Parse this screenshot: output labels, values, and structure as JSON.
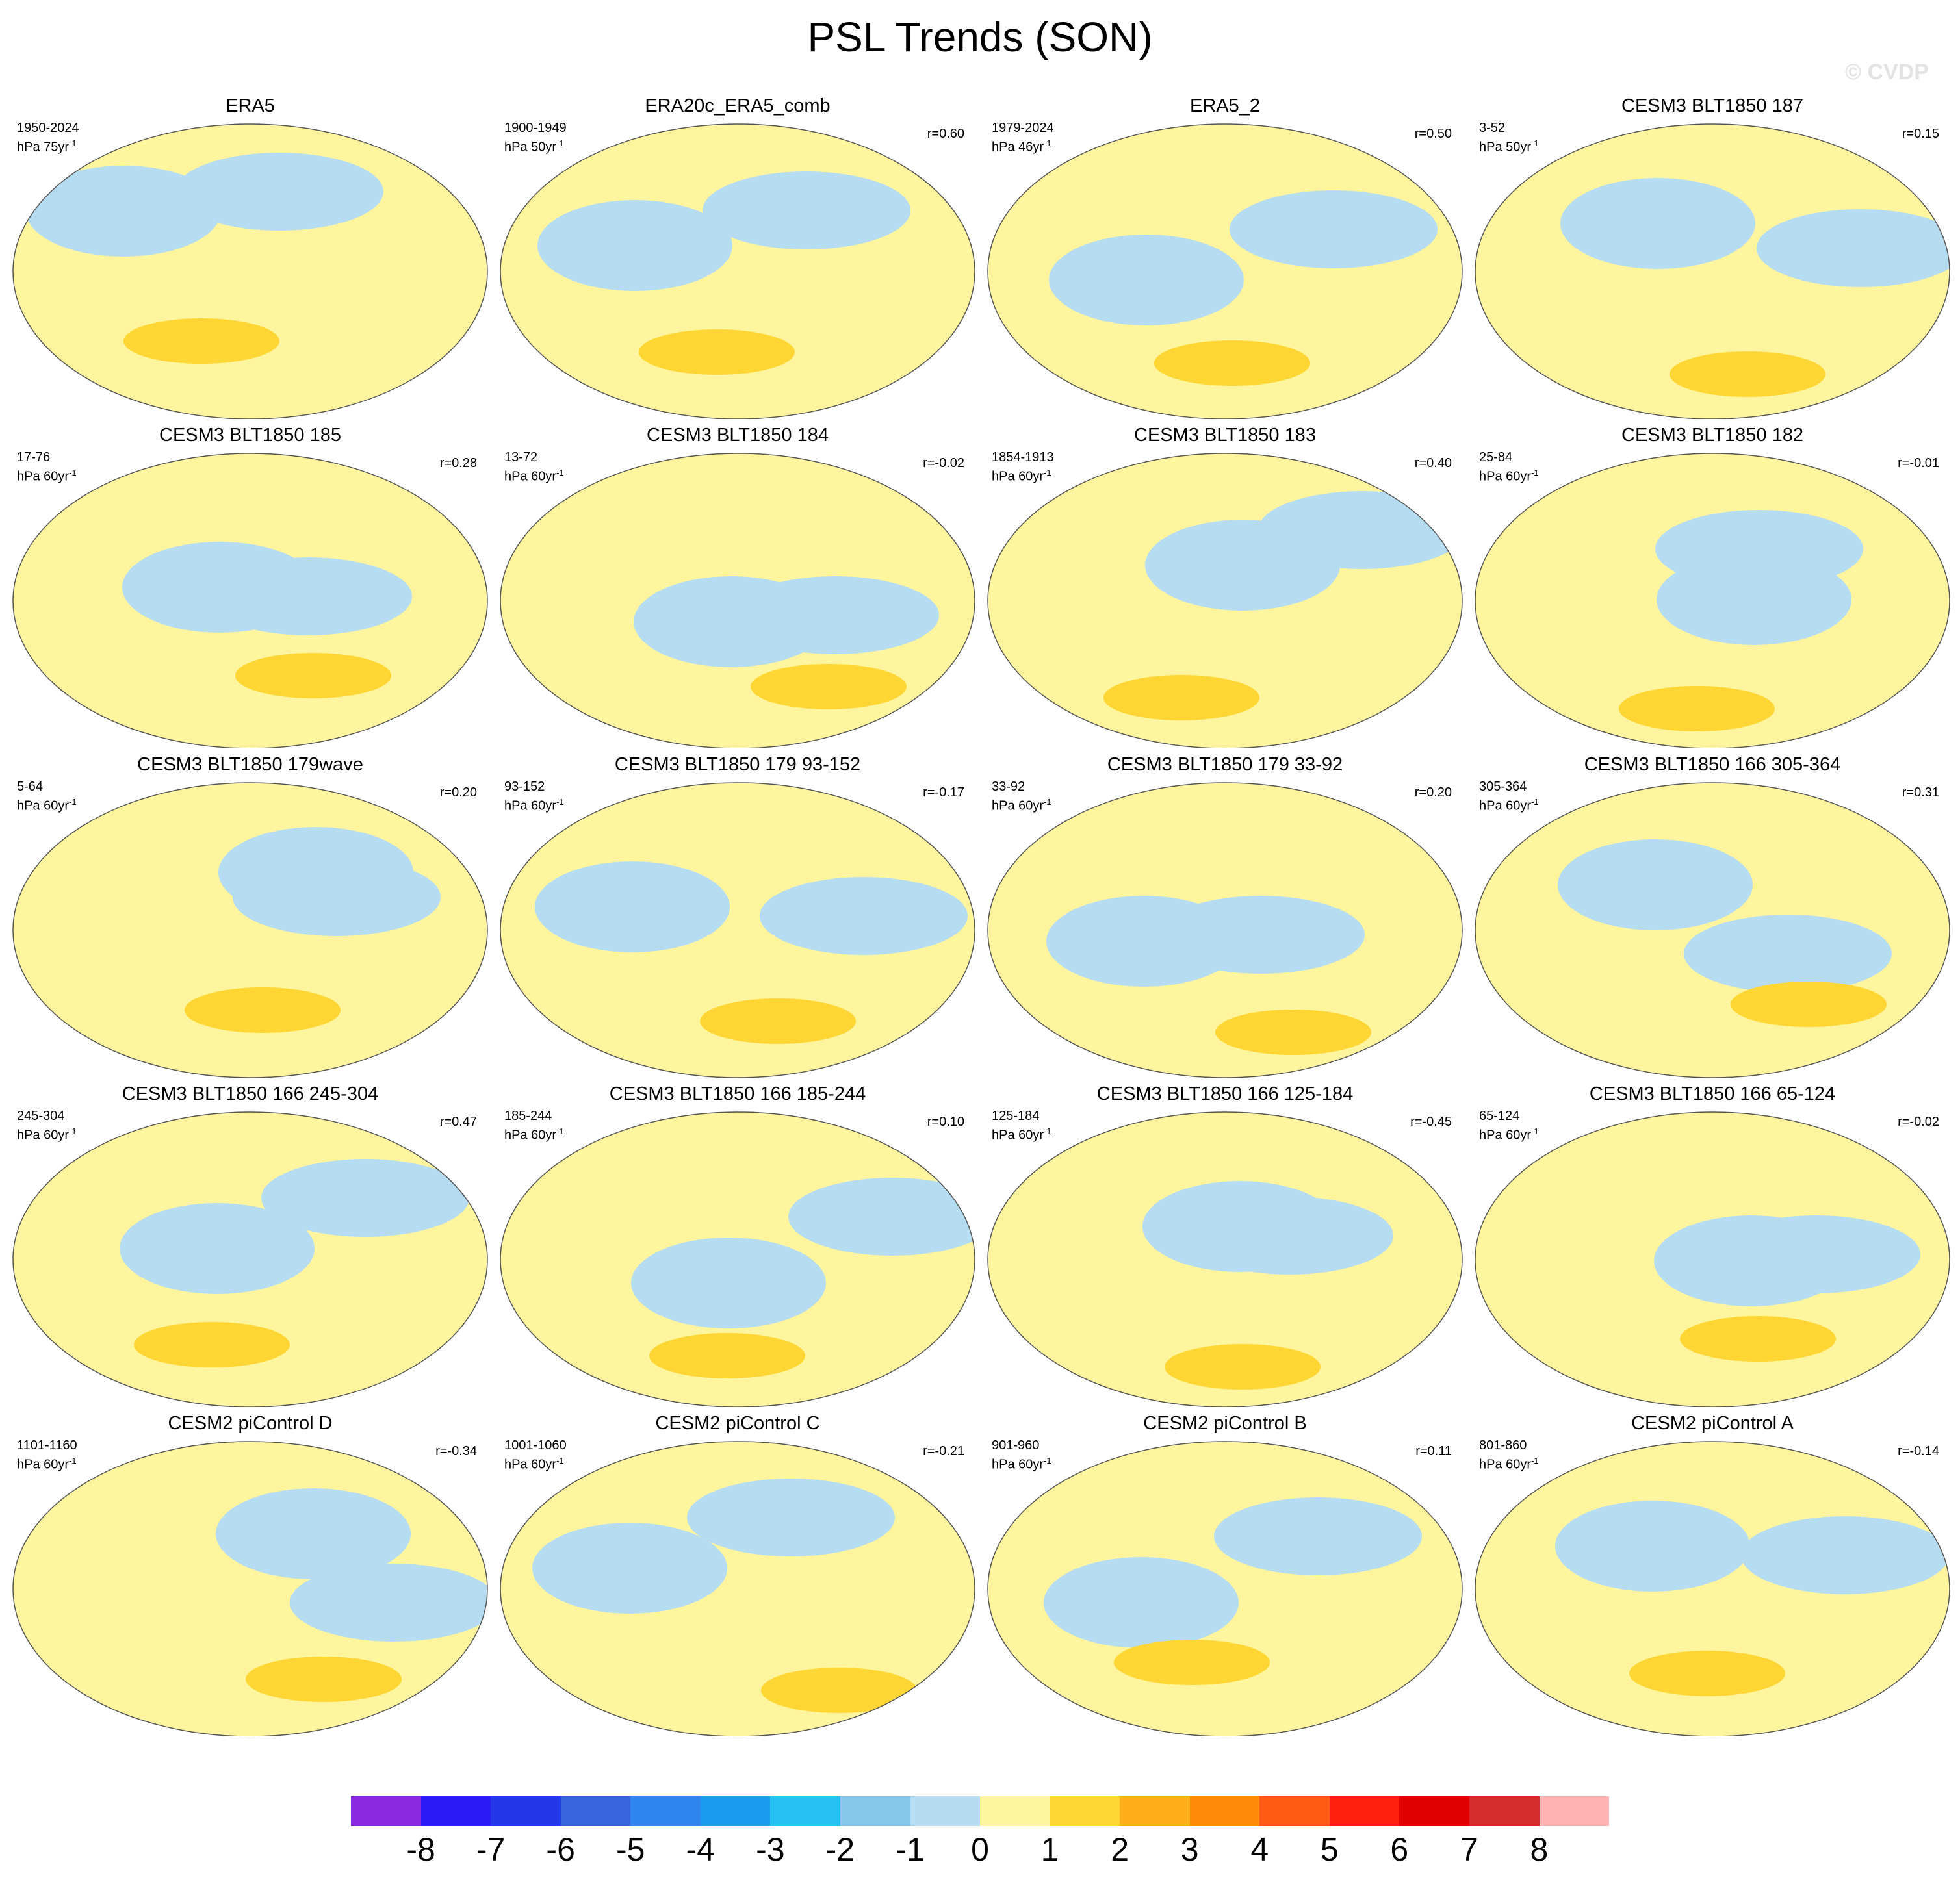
{
  "figure": {
    "title": "PSL Trends (SON)",
    "watermark": "© CVDP"
  },
  "panels": [
    {
      "title": "ERA5",
      "period": "1950-2024",
      "units_base": "hPa 75yr",
      "units_exp": "-1",
      "corr": ""
    },
    {
      "title": "ERA20c_ERA5_comb",
      "period": "1900-1949",
      "units_base": "hPa 50yr",
      "units_exp": "-1",
      "corr": "r=0.60"
    },
    {
      "title": "ERA5_2",
      "period": "1979-2024",
      "units_base": "hPa 46yr",
      "units_exp": "-1",
      "corr": "r=0.50"
    },
    {
      "title": "CESM3 BLT1850 187",
      "period": "3-52",
      "units_base": "hPa 50yr",
      "units_exp": "-1",
      "corr": "r=0.15"
    },
    {
      "title": "CESM3 BLT1850 185",
      "period": "17-76",
      "units_base": "hPa 60yr",
      "units_exp": "-1",
      "corr": "r=0.28"
    },
    {
      "title": "CESM3 BLT1850 184",
      "period": "13-72",
      "units_base": "hPa 60yr",
      "units_exp": "-1",
      "corr": "r=-0.02"
    },
    {
      "title": "CESM3 BLT1850 183",
      "period": "1854-1913",
      "units_base": "hPa 60yr",
      "units_exp": "-1",
      "corr": "r=0.40"
    },
    {
      "title": "CESM3 BLT1850 182",
      "period": "25-84",
      "units_base": "hPa 60yr",
      "units_exp": "-1",
      "corr": "r=-0.01"
    },
    {
      "title": "CESM3 BLT1850 179wave",
      "period": "5-64",
      "units_base": "hPa 60yr",
      "units_exp": "-1",
      "corr": "r=0.20"
    },
    {
      "title": "CESM3 BLT1850 179 93-152",
      "period": "93-152",
      "units_base": "hPa 60yr",
      "units_exp": "-1",
      "corr": "r=-0.17"
    },
    {
      "title": "CESM3 BLT1850 179 33-92",
      "period": "33-92",
      "units_base": "hPa 60yr",
      "units_exp": "-1",
      "corr": "r=0.20"
    },
    {
      "title": "CESM3 BLT1850 166 305-364",
      "period": "305-364",
      "units_base": "hPa 60yr",
      "units_exp": "-1",
      "corr": "r=0.31"
    },
    {
      "title": "CESM3 BLT1850 166 245-304",
      "period": "245-304",
      "units_base": "hPa 60yr",
      "units_exp": "-1",
      "corr": "r=0.47"
    },
    {
      "title": "CESM3 BLT1850 166 185-244",
      "period": "185-244",
      "units_base": "hPa 60yr",
      "units_exp": "-1",
      "corr": "r=0.10"
    },
    {
      "title": "CESM3 BLT1850 166 125-184",
      "period": "125-184",
      "units_base": "hPa 60yr",
      "units_exp": "-1",
      "corr": "r=-0.45"
    },
    {
      "title": "CESM3 BLT1850 166 65-124",
      "period": "65-124",
      "units_base": "hPa 60yr",
      "units_exp": "-1",
      "corr": "r=-0.02"
    },
    {
      "title": "CESM2 piControl D",
      "period": "1101-1160",
      "units_base": "hPa 60yr",
      "units_exp": "-1",
      "corr": "r=-0.34"
    },
    {
      "title": "CESM2 piControl C",
      "period": "1001-1060",
      "units_base": "hPa 60yr",
      "units_exp": "-1",
      "corr": "r=-0.21"
    },
    {
      "title": "CESM2 piControl B",
      "period": "901-960",
      "units_base": "hPa 60yr",
      "units_exp": "-1",
      "corr": "r=0.11"
    },
    {
      "title": "CESM2 piControl A",
      "period": "801-860",
      "units_base": "hPa 60yr",
      "units_exp": "-1",
      "corr": "r=-0.14"
    }
  ],
  "colorbar": {
    "labels": [
      "-8",
      "-7",
      "-6",
      "-5",
      "-4",
      "-3",
      "-2",
      "-1",
      "0",
      "1",
      "2",
      "3",
      "4",
      "5",
      "6",
      "7",
      "8"
    ],
    "colors": [
      "#8a2be2",
      "#2b1bf5",
      "#2237e8",
      "#3a66dd",
      "#2f86ee",
      "#1c9cf0",
      "#26c0f2",
      "#87c8ea",
      "#b5dcf0",
      "#fff59e",
      "#ffd633",
      "#ffb01a",
      "#ff8a0a",
      "#ff5a14",
      "#ff1f0f",
      "#e00000",
      "#d52b2b",
      "#ffb3b3"
    ]
  }
}
